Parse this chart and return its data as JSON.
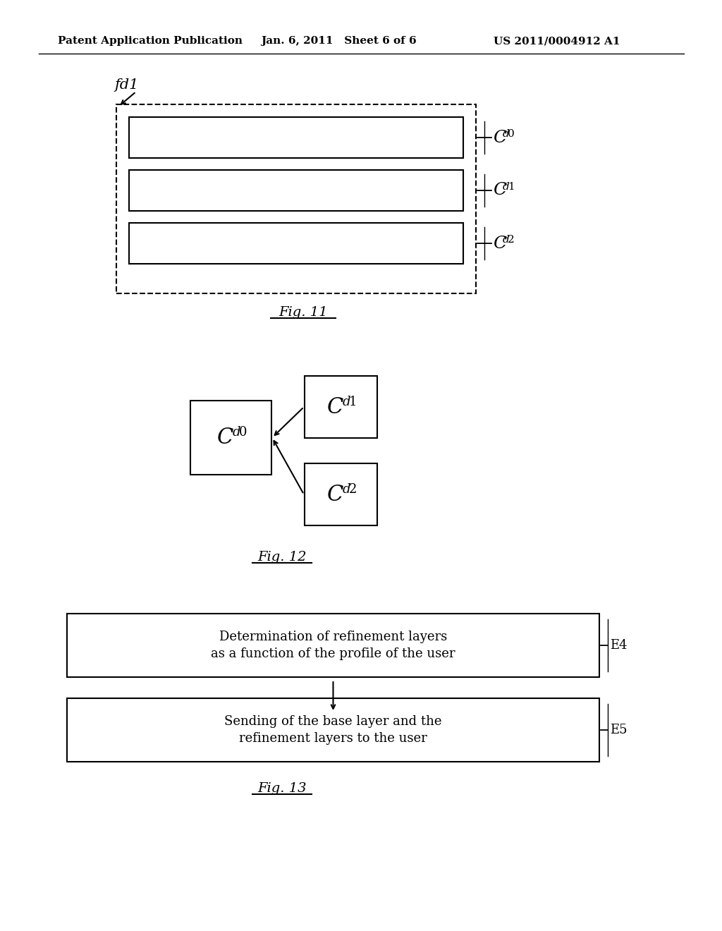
{
  "bg_color": "#ffffff",
  "header_left": "Patent Application Publication",
  "header_mid": "Jan. 6, 2011   Sheet 6 of 6",
  "header_right": "US 2011/0004912 A1",
  "fig11_label": "Fig. 11",
  "fig12_label": "Fig. 12",
  "fig13_label": "Fig. 13",
  "fd1_label": "fd1",
  "cd0_sub": "d0",
  "cd1_sub": "d1",
  "cd2_sub": "d2",
  "e4_label": "E4",
  "e5_label": "E5",
  "box_e4_text1": "Determination of refinement layers",
  "box_e4_text2": "as a function of the profile of the user",
  "box_e5_text1": "Sending of the base layer and the",
  "box_e5_text2": "refinement layers to the user"
}
